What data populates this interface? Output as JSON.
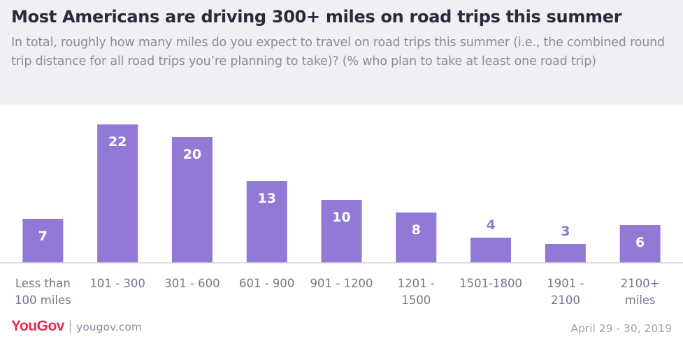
{
  "header": {
    "title": "Most Americans are driving 300+ miles on road trips this summer",
    "subtitle": "In total, roughly how many miles do you expect to travel on road trips this summer (i.e., the combined round trip distance for all road trips you’re planning to take)? (% who plan to take at least one road trip)"
  },
  "footer": {
    "brand": "YouGov",
    "separator": "|",
    "website": "yougov.com",
    "date": "April 29 - 30, 2019"
  },
  "colors": {
    "bar": "#9179d5",
    "label_inside": "#ffffff",
    "label_outside": "#9179d5",
    "axis": "#d4d2dc",
    "tick_text": "#77758a",
    "header_bg": "#efeff4",
    "brand": "#e52b4d"
  },
  "chart_data": {
    "type": "bar",
    "title": "Most Americans are driving 300+ miles on road trips this summer",
    "categories": [
      [
        "Less than",
        "100 miles"
      ],
      [
        "101 - 300"
      ],
      [
        "301 - 600"
      ],
      [
        "601 - 900"
      ],
      [
        "901 - 1200"
      ],
      [
        "1201 -",
        "1500"
      ],
      [
        "1501-1800"
      ],
      [
        "1901 -",
        "2100"
      ],
      [
        "2100+",
        "miles"
      ]
    ],
    "values": [
      7,
      22,
      20,
      13,
      10,
      8,
      4,
      3,
      6
    ],
    "data_labels": [
      "7",
      "22",
      "20",
      "13",
      "10",
      "8",
      "4",
      "3",
      "6"
    ],
    "xlabel": "",
    "ylabel": "",
    "ylim": [
      0,
      22
    ],
    "grid": false,
    "legend": "none"
  }
}
